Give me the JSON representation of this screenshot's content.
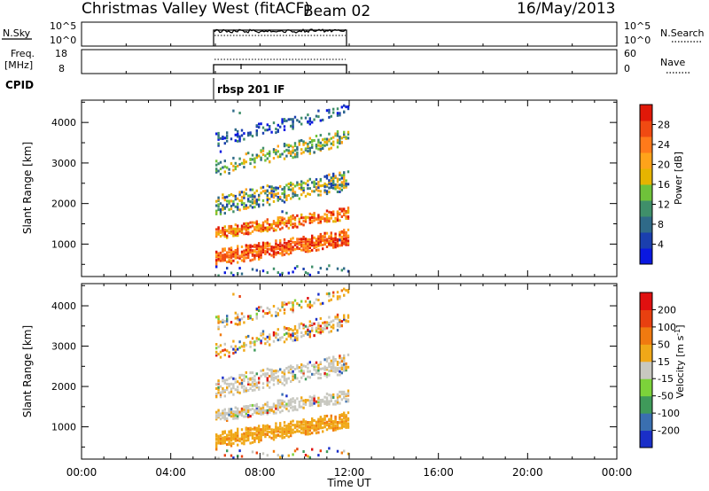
{
  "header": {
    "station": "Christmas Valley West (fitACF)",
    "beam": "Beam 02",
    "date": "16/May/2013"
  },
  "nsky_panel": {
    "left_label": "N.Sky",
    "right_label": "N.Search",
    "left_ticks": [
      "10^5",
      "10^0"
    ],
    "right_ticks": [
      "10^5",
      "10^0"
    ]
  },
  "freq_panel": {
    "left_label_line1": "Freq.",
    "left_label_line2": "[MHz]",
    "right_label": "Nave",
    "left_ticks": [
      "18",
      "8"
    ],
    "right_ticks": [
      "60",
      "0"
    ]
  },
  "cpid": {
    "label": "CPID",
    "program": "rbsp 201 IF"
  },
  "chart_data": [
    {
      "type": "heatmap",
      "name": "power",
      "xlabel": "",
      "ylabel": "Slant Range [km]",
      "x_range_hours": [
        0,
        24
      ],
      "y_range_km": [
        200,
        4550
      ],
      "y_ticks": [
        "1000",
        "2000",
        "3000",
        "4000"
      ],
      "data_extent_hours": [
        6,
        12
      ],
      "colorbar": {
        "label": "Power [dB]",
        "ticks": [
          "4",
          "8",
          "12",
          "16",
          "20",
          "24",
          "28"
        ],
        "colors": [
          "#0a18e0",
          "#1a3fae",
          "#2f6a88",
          "#3f8f6a",
          "#6fc23a",
          "#e6b400",
          "#ffa31a",
          "#ff7a1a",
          "#f04a12",
          "#e01808"
        ]
      }
    },
    {
      "type": "heatmap",
      "name": "velocity",
      "xlabel": "Time UT",
      "ylabel": "Slant Range [km]",
      "x_range_hours": [
        0,
        24
      ],
      "x_ticks": [
        "00:00",
        "04:00",
        "08:00",
        "12:00",
        "16:00",
        "20:00",
        "00:00"
      ],
      "y_range_km": [
        200,
        4550
      ],
      "y_ticks": [
        "1000",
        "2000",
        "3000",
        "4000"
      ],
      "data_extent_hours": [
        6,
        12
      ],
      "colorbar": {
        "label_main": "Velocity [m s",
        "label_sup": "-1",
        "label_close": "]",
        "ticks": [
          "200",
          "100",
          "50",
          "15",
          "-15",
          "-50",
          "-100",
          "-200"
        ],
        "colors": [
          "#1a2fc8",
          "#3a6fb0",
          "#3f9a5a",
          "#7cd23a",
          "#c8c8c0",
          "#f0a818",
          "#f07a10",
          "#e84010",
          "#e01010"
        ]
      }
    }
  ]
}
